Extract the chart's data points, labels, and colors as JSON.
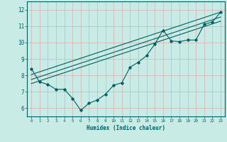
{
  "title": "",
  "xlabel": "Humidex (Indice chaleur)",
  "ylabel": "",
  "background_color": "#c8ebe6",
  "grid_color": "#aed8d2",
  "line_color": "#006060",
  "xlim": [
    -0.5,
    23.5
  ],
  "ylim": [
    5.5,
    12.5
  ],
  "xticks": [
    0,
    1,
    2,
    3,
    4,
    5,
    6,
    7,
    8,
    9,
    10,
    11,
    12,
    13,
    14,
    15,
    16,
    17,
    18,
    19,
    20,
    21,
    22,
    23
  ],
  "yticks": [
    6,
    7,
    8,
    9,
    10,
    11,
    12
  ],
  "zigzag_x": [
    0,
    1,
    2,
    3,
    4,
    5,
    6,
    7,
    8,
    9,
    10,
    11,
    12,
    13,
    14,
    15,
    16,
    17,
    18,
    19,
    20,
    21,
    22,
    23
  ],
  "zigzag_y": [
    8.4,
    7.6,
    7.45,
    7.15,
    7.15,
    6.6,
    5.87,
    6.3,
    6.5,
    6.85,
    7.4,
    7.55,
    8.5,
    8.8,
    9.2,
    9.9,
    10.75,
    10.1,
    10.05,
    10.15,
    10.15,
    11.1,
    11.25,
    11.85
  ],
  "line1_x": [
    0,
    23
  ],
  "line1_y": [
    8.05,
    11.85
  ],
  "line2_x": [
    0,
    23
  ],
  "line2_y": [
    7.75,
    11.55
  ],
  "line3_x": [
    0,
    23
  ],
  "line3_y": [
    7.5,
    11.3
  ]
}
